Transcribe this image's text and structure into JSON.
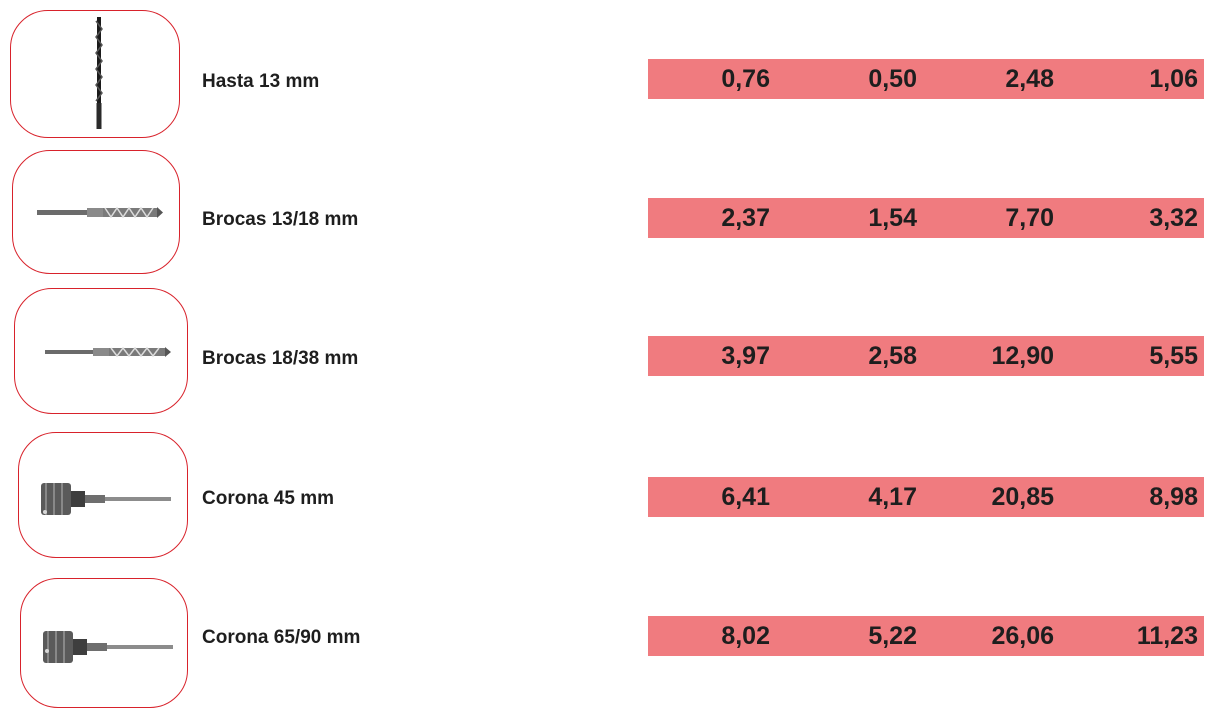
{
  "rows": [
    {
      "label": "Hasta 13 mm",
      "icon": "twist-drill-bit-icon",
      "values": [
        "0,76",
        "0,50",
        "2,48",
        "1,06"
      ]
    },
    {
      "label": "Brocas 13/18 mm",
      "icon": "masonry-drill-bit-icon",
      "values": [
        "2,37",
        "1,54",
        "7,70",
        "3,32"
      ]
    },
    {
      "label": "Brocas 18/38 mm",
      "icon": "masonry-drill-bit-icon",
      "values": [
        "3,97",
        "2,58",
        "12,90",
        "5,55"
      ]
    },
    {
      "label": "Corona 45 mm",
      "icon": "core-drill-bit-icon",
      "values": [
        "6,41",
        "4,17",
        "20,85",
        "8,98"
      ]
    },
    {
      "label": "Corona 65/90 mm",
      "icon": "core-drill-bit-icon",
      "values": [
        "8,02",
        "5,22",
        "26,06",
        "11,23"
      ]
    }
  ],
  "colors": {
    "frame": "#d8222b",
    "bar": "#f07b7f",
    "text": "#1e1e1e"
  }
}
